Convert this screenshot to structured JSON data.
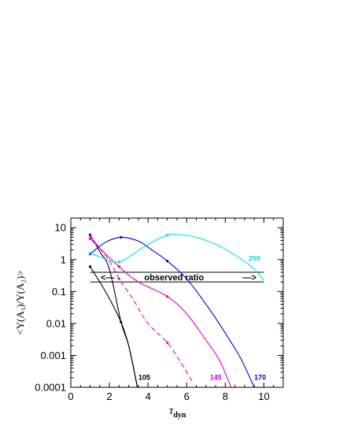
{
  "chart_data": {
    "type": "line",
    "title": "",
    "xlabel": "τ",
    "xlabel_subscript": "dyn",
    "ylabel": "<Y(A₃)/Y(A₂)>",
    "xlim": [
      0,
      11
    ],
    "ylim": [
      0.0001,
      20
    ],
    "yscale": "log",
    "xticks": [
      0,
      2,
      4,
      6,
      8,
      10
    ],
    "xtick_labels": [
      "0",
      "2",
      "4",
      "6",
      "8",
      "10"
    ],
    "yticks": [
      0.0001,
      0.001,
      0.01,
      0.1,
      1,
      10
    ],
    "ytick_labels": [
      "0.0001",
      "0.001",
      "0.01",
      "0.1",
      "1",
      "10"
    ],
    "grid": false,
    "series": [
      {
        "name": "105",
        "color": "#000000",
        "dash": "solid",
        "x": [
          1,
          1.5,
          2,
          2.6,
          3,
          3.45
        ],
        "y": [
          0.6,
          0.2,
          0.06,
          0.011,
          0.002,
          0.0001
        ],
        "markers_x": [
          1,
          2.6
        ],
        "markers_y": [
          0.6,
          0.011
        ]
      },
      {
        "name": "105",
        "color": "#000000",
        "dash": "solid",
        "x": [
          1,
          1.5,
          2,
          2.6,
          3,
          3.45
        ],
        "y": [
          6,
          1.8,
          0.5,
          0.011,
          0.002,
          0.0001
        ],
        "markers_x": [
          1
        ],
        "markers_y": [
          6
        ]
      },
      {
        "name": "145",
        "color": "#e000d0",
        "dash": "solid",
        "x": [
          1,
          2.5,
          3.5,
          5,
          6,
          7,
          7.7,
          8.3
        ],
        "y": [
          4.5,
          0.6,
          0.2,
          0.07,
          0.02,
          0.003,
          0.0007,
          0.0001
        ],
        "markers_x": [
          1,
          2.5,
          5
        ],
        "markers_y": [
          4.5,
          0.6,
          0.07
        ]
      },
      {
        "name": "145 (dashed)",
        "color": "#e000d0",
        "dash": "dashed",
        "x": [
          1,
          2,
          2.5,
          3.2,
          4,
          5,
          5.7,
          6.3
        ],
        "y": [
          5.5,
          0.9,
          0.25,
          0.06,
          0.01,
          0.0025,
          0.0006,
          0.00015
        ],
        "markers_x": [
          1,
          2.5,
          5
        ],
        "markers_y": [
          5.5,
          0.25,
          0.0025
        ]
      },
      {
        "name": "170",
        "color": "#0000d0",
        "dash": "solid",
        "x": [
          1,
          1.8,
          2.6,
          3.5,
          4.2,
          5,
          6,
          7,
          8,
          8.8,
          9.5
        ],
        "y": [
          1.5,
          3.5,
          5,
          3.8,
          2,
          0.9,
          0.25,
          0.04,
          0.005,
          0.0008,
          0.0001
        ],
        "markers_x": [
          1,
          2.6,
          5
        ],
        "markers_y": [
          1.5,
          5,
          0.9
        ]
      },
      {
        "name": "200",
        "color": "#00e0e0",
        "dash": "solid",
        "x": [
          1,
          2,
          2.5,
          3,
          4,
          5,
          5.5,
          6.5,
          7.5,
          8.5,
          9.5,
          10
        ],
        "y": [
          1.6,
          0.95,
          0.85,
          1.2,
          3,
          5.8,
          6.2,
          5,
          3,
          1.4,
          0.5,
          0.22
        ],
        "markers_x": [
          1,
          2.5,
          5
        ],
        "markers_y": [
          1.6,
          0.85,
          5.8
        ]
      }
    ],
    "curve_labels": [
      {
        "text": "105",
        "color": "#000000",
        "x": 3.5,
        "y": 0.00017
      },
      {
        "text": "145",
        "color": "#e000d0",
        "x": 7.2,
        "y": 0.00017
      },
      {
        "text": "170",
        "color": "#0000d0",
        "x": 9.5,
        "y": 0.00017
      },
      {
        "text": "200",
        "color": "#00e0e0",
        "x": 9.2,
        "y": 0.9
      }
    ],
    "annotation": {
      "text": "observed ratio",
      "left_arrow": "<—",
      "right_arrow": "—>",
      "band_top": 0.4,
      "band_bottom": 0.2,
      "x_start": 1,
      "x_end": 10
    }
  }
}
